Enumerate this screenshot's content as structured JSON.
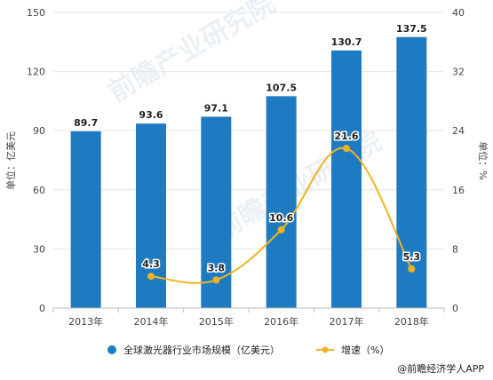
{
  "chart_data": {
    "type": "bar",
    "categories": [
      "2013年",
      "2014年",
      "2015年",
      "2016年",
      "2017年",
      "2018年"
    ],
    "series": [
      {
        "name": "全球激光器行业市场规模（亿美元）",
        "type": "bar",
        "axis": "left",
        "values": [
          89.7,
          93.6,
          97.1,
          107.5,
          130.7,
          137.5
        ],
        "labels": [
          "89.7",
          "93.6",
          "97.1",
          "107.5",
          "130.7",
          "137.5"
        ],
        "color": "#1f7bc1"
      },
      {
        "name": "增速（%）",
        "type": "line",
        "axis": "right",
        "values": [
          null,
          4.3,
          3.8,
          10.6,
          21.6,
          5.3
        ],
        "labels": [
          "",
          "4.3",
          "3.8",
          "10.6",
          "21.6",
          "5.3"
        ],
        "color": "#f0b323"
      }
    ],
    "ylabel_left": "单位：亿美元",
    "ylabel_right": "单位：%",
    "ylim_left": [
      0,
      150
    ],
    "yticks_left": [
      "0",
      "30",
      "60",
      "90",
      "120",
      "150"
    ],
    "ylim_right": [
      0,
      40
    ],
    "yticks_right": [
      "0",
      "8",
      "16",
      "24",
      "32",
      "40"
    ],
    "grid": true,
    "legend_position": "bottom"
  },
  "watermark": "前瞻产业研究院",
  "source": "@前瞻经济学人APP"
}
